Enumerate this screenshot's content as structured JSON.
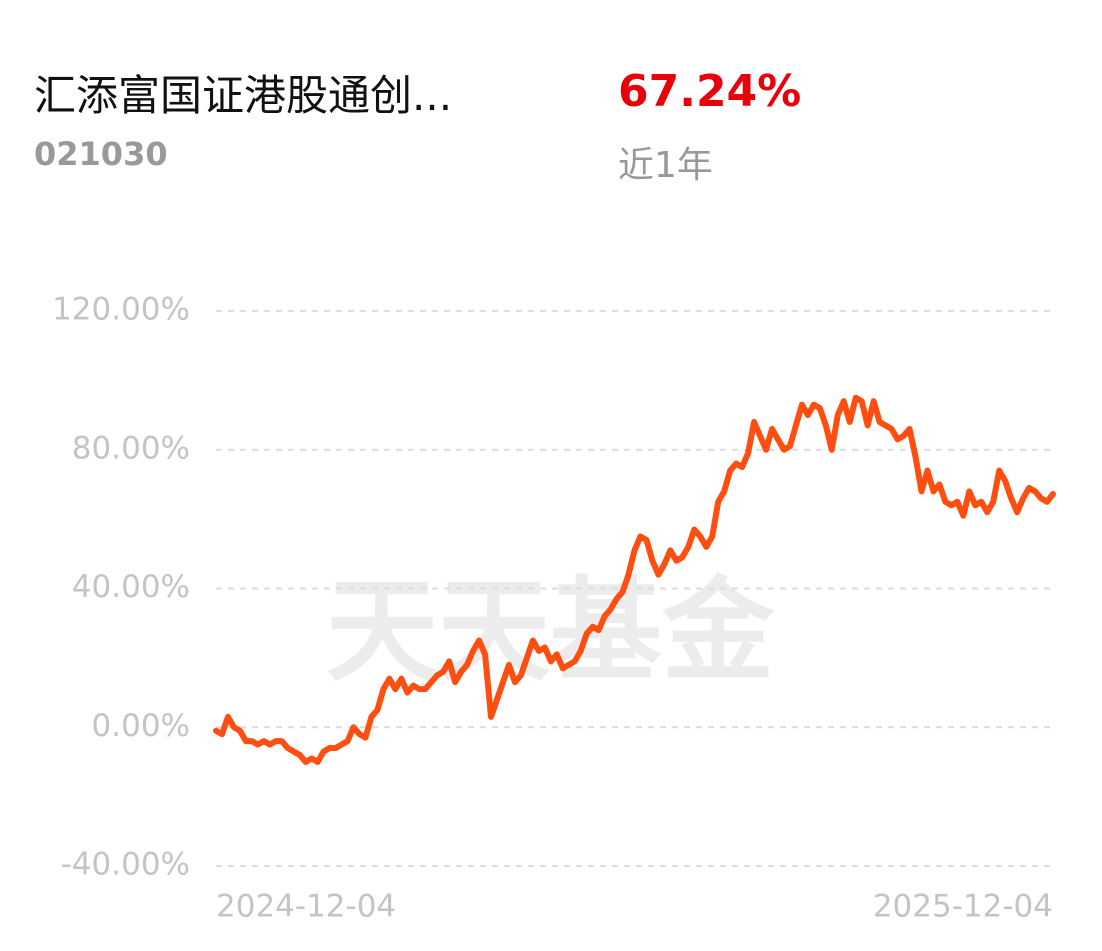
{
  "header": {
    "title": "汇添富国证港股通创...",
    "code": "021030",
    "return_value": "67.24%",
    "return_period": "近1年"
  },
  "chart_data": {
    "type": "line",
    "watermark": "天天基金",
    "categories": [
      "2024-12-04",
      null,
      null,
      null,
      null,
      null,
      null,
      null,
      null,
      null,
      null,
      null,
      null,
      null,
      null,
      null,
      null,
      null,
      null,
      null,
      null,
      null,
      null,
      null,
      null,
      null,
      null,
      null,
      null,
      null,
      null,
      null,
      null,
      null,
      null,
      null,
      null,
      null,
      null,
      null,
      null,
      null,
      null,
      null,
      null,
      null,
      null,
      null,
      null,
      null,
      null,
      null,
      null,
      null,
      null,
      null,
      null,
      null,
      null,
      null,
      null,
      null,
      null,
      null,
      null,
      null,
      null,
      null,
      null,
      null,
      null,
      null,
      null,
      null,
      null,
      null,
      null,
      null,
      null,
      null,
      null,
      null,
      null,
      null,
      null,
      null,
      null,
      null,
      null,
      null,
      null,
      null,
      null,
      null,
      null,
      null,
      null,
      null,
      null,
      null,
      null,
      null,
      null,
      null,
      null,
      null,
      null,
      null,
      null,
      null,
      null,
      null,
      null,
      null,
      null,
      null,
      null,
      null,
      null,
      null,
      null,
      null,
      null,
      null,
      null,
      null,
      null,
      null,
      null,
      null,
      null,
      null,
      null,
      null,
      null,
      null,
      null,
      null,
      null,
      null,
      "2025-12-04"
    ],
    "series": [
      {
        "color": "#ff4e0f",
        "values": [
          -1,
          -2,
          3,
          0,
          -1,
          -4,
          -4,
          -5,
          -4,
          -5,
          -4,
          -4,
          -6,
          -7,
          -8,
          -10,
          -9,
          -10,
          -7,
          -6,
          -6,
          -5,
          -4,
          0,
          -2,
          -3,
          3,
          5,
          11,
          14,
          11,
          14,
          10,
          12,
          11,
          11,
          13,
          15,
          16,
          19,
          13,
          16,
          18,
          22,
          25,
          21,
          3,
          8,
          13,
          18,
          13,
          15,
          20,
          25,
          22,
          23,
          19,
          21,
          17,
          18,
          19,
          22,
          27,
          29,
          28,
          32,
          34,
          37,
          39,
          44,
          51,
          55,
          54,
          48,
          44,
          47,
          51,
          48,
          49,
          52,
          57,
          55,
          52,
          55,
          65,
          68,
          74,
          76,
          75,
          79,
          88,
          84,
          80,
          86,
          83,
          80,
          81,
          87,
          93,
          90,
          93,
          92,
          87,
          80,
          90,
          94,
          88,
          95,
          94,
          87,
          94,
          88,
          87,
          86,
          83,
          84,
          86,
          78,
          68,
          74,
          68,
          70,
          65,
          64,
          65,
          61,
          68,
          64,
          65,
          62,
          65,
          74,
          71,
          66,
          62,
          66,
          69,
          68,
          66,
          65,
          67.24
        ]
      }
    ],
    "ylim": [
      -40,
      120
    ],
    "yticks": [
      {
        "value": -40,
        "label": "-40.00%"
      },
      {
        "value": 0,
        "label": "0.00%"
      },
      {
        "value": 40,
        "label": "40.00%"
      },
      {
        "value": 80,
        "label": "80.00%"
      },
      {
        "value": 120,
        "label": "120.00%"
      }
    ],
    "grid": true
  }
}
